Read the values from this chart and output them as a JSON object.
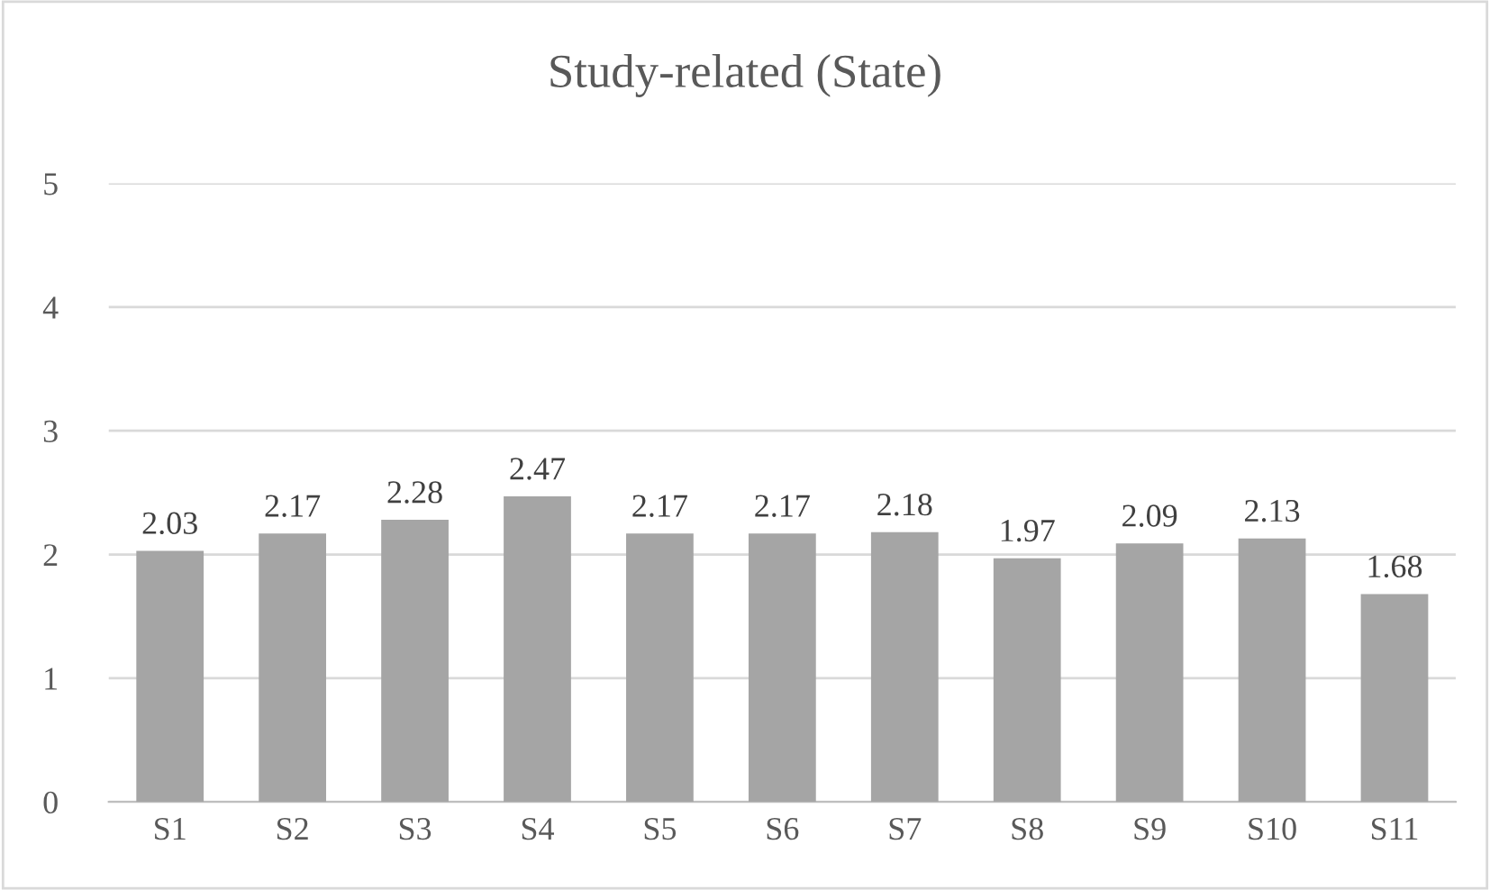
{
  "chart_data": {
    "type": "bar",
    "title": "Study-related (State)",
    "categories": [
      "S1",
      "S2",
      "S3",
      "S4",
      "S5",
      "S6",
      "S7",
      "S8",
      "S9",
      "S10",
      "S11"
    ],
    "values": [
      2.03,
      2.17,
      2.28,
      2.47,
      2.17,
      2.17,
      2.18,
      1.97,
      2.09,
      2.13,
      1.68
    ],
    "color": "#a5a5a5",
    "ylim": [
      0,
      5
    ],
    "yticks": [
      0,
      1,
      2,
      3,
      4,
      5
    ],
    "grid": "y",
    "data_labels": true,
    "legend": false
  }
}
